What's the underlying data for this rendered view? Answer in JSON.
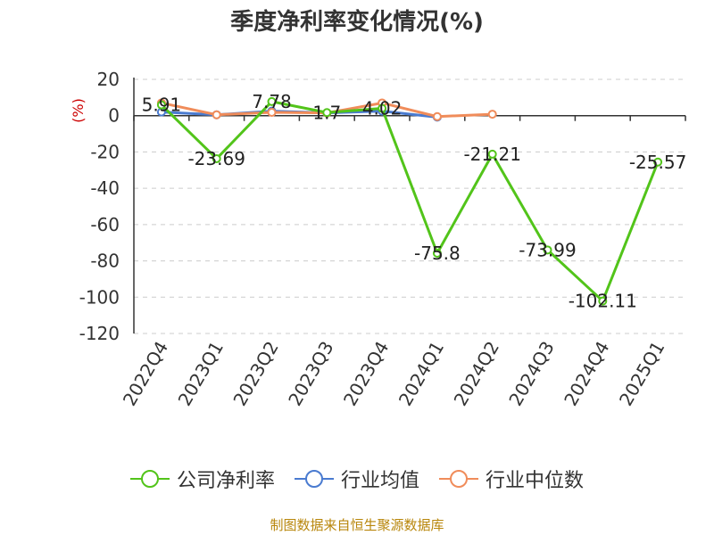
{
  "chart_data": {
    "type": "line",
    "title": "季度净利率变化情况(%)",
    "ylabel": "(%)",
    "xlabel": "",
    "categories": [
      "2022Q4",
      "2023Q1",
      "2023Q2",
      "2023Q3",
      "2023Q4",
      "2024Q1",
      "2024Q2",
      "2024Q3",
      "2024Q4",
      "2025Q1"
    ],
    "ylim": [
      -120,
      20
    ],
    "yticks": [
      20,
      0,
      -20,
      -40,
      -60,
      -80,
      -100,
      -120
    ],
    "grid": true,
    "legend_position": "bottom",
    "series": [
      {
        "name": "公司净利率",
        "color": "#52c41a",
        "values": [
          5.91,
          -23.69,
          7.78,
          1.7,
          4.02,
          -75.8,
          -21.21,
          -73.99,
          -102.11,
          -25.57
        ],
        "labels": [
          "5.91",
          "-23.69",
          "7.78",
          "1.7",
          "4.02",
          "-75.8",
          "-21.21",
          "-73.99",
          "-102.11",
          "-25.57"
        ]
      },
      {
        "name": "行业均值",
        "color": "#4a7bd0",
        "values": [
          2.0,
          0.5,
          2.5,
          1.5,
          2.5,
          -0.8,
          null,
          null,
          null,
          null
        ]
      },
      {
        "name": "行业中位数",
        "color": "#f08c5a",
        "values": [
          7.0,
          0.5,
          1.8,
          1.5,
          7.0,
          -0.5,
          0.8,
          null,
          null,
          null
        ]
      }
    ]
  },
  "source_note": "制图数据来自恒生聚源数据库"
}
